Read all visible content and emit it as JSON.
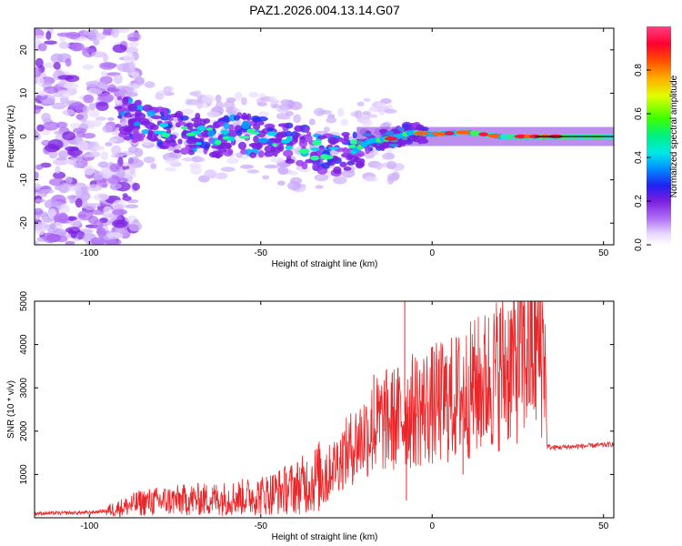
{
  "title": "PAZ1.2026.004.13.14.G07",
  "chart_data": [
    {
      "type": "heatmap",
      "name": "spectrogram",
      "xlabel": "Height of straight line (km)",
      "ylabel": "Frequency (Hz)",
      "xlim": [
        -116,
        53
      ],
      "ylim": [
        -25,
        25
      ],
      "xticks": [
        -100,
        -50,
        0,
        50
      ],
      "yticks": [
        -20,
        -10,
        0,
        10,
        20
      ],
      "colorbar": {
        "label": "Normalized spectral amplitude",
        "range": [
          0,
          1
        ],
        "ticks": [
          "0.0",
          "0.2",
          "0.4",
          "0.6",
          "0.8"
        ]
      },
      "ridge": {
        "x": [
          -92,
          -85,
          -75,
          -65,
          -55,
          -45,
          -35,
          -28,
          -22,
          -18,
          -12,
          -6,
          0,
          10,
          20,
          30,
          40,
          53
        ],
        "freq": [
          5,
          3,
          1,
          0,
          0.5,
          -1,
          -3,
          -4,
          -3,
          -1,
          -0.5,
          1,
          0.5,
          1,
          0,
          0,
          0,
          0
        ]
      }
    },
    {
      "type": "line",
      "name": "snr",
      "xlabel": "Height of straight line (km)",
      "ylabel": "SNR (10 * v/v)",
      "xlim": [
        -116,
        53
      ],
      "ylim": [
        0,
        5000
      ],
      "xticks": [
        -100,
        -50,
        0,
        50
      ],
      "yticks": [
        1000,
        2000,
        3000,
        4000,
        5000
      ],
      "color": "#e8272a",
      "series": [
        {
          "name": "SNR",
          "x": [
            -116,
            -100,
            -95,
            -90,
            -85,
            -80,
            -75,
            -70,
            -65,
            -60,
            -55,
            -50,
            -45,
            -40,
            -35,
            -30,
            -25,
            -20,
            -15,
            -10,
            -5,
            0,
            5,
            10,
            15,
            20,
            25,
            30,
            33,
            33.5,
            35,
            40,
            45,
            50,
            53
          ],
          "y": [
            100,
            120,
            160,
            250,
            350,
            380,
            400,
            420,
            430,
            450,
            480,
            520,
            600,
            700,
            850,
            1100,
            1500,
            1900,
            2200,
            2300,
            2500,
            2600,
            2700,
            2900,
            3100,
            3400,
            3700,
            3900,
            3950,
            1650,
            1620,
            1640,
            1660,
            1680,
            1700
          ],
          "spikes": [
            {
              "x": -8,
              "y": 5000
            },
            {
              "x": -7.5,
              "y": 400
            },
            {
              "x": 4,
              "y": 3000
            },
            {
              "x": 9,
              "y": 1000
            },
            {
              "x": 12,
              "y": 3950
            },
            {
              "x": -17,
              "y": 3300
            }
          ]
        }
      ]
    }
  ]
}
